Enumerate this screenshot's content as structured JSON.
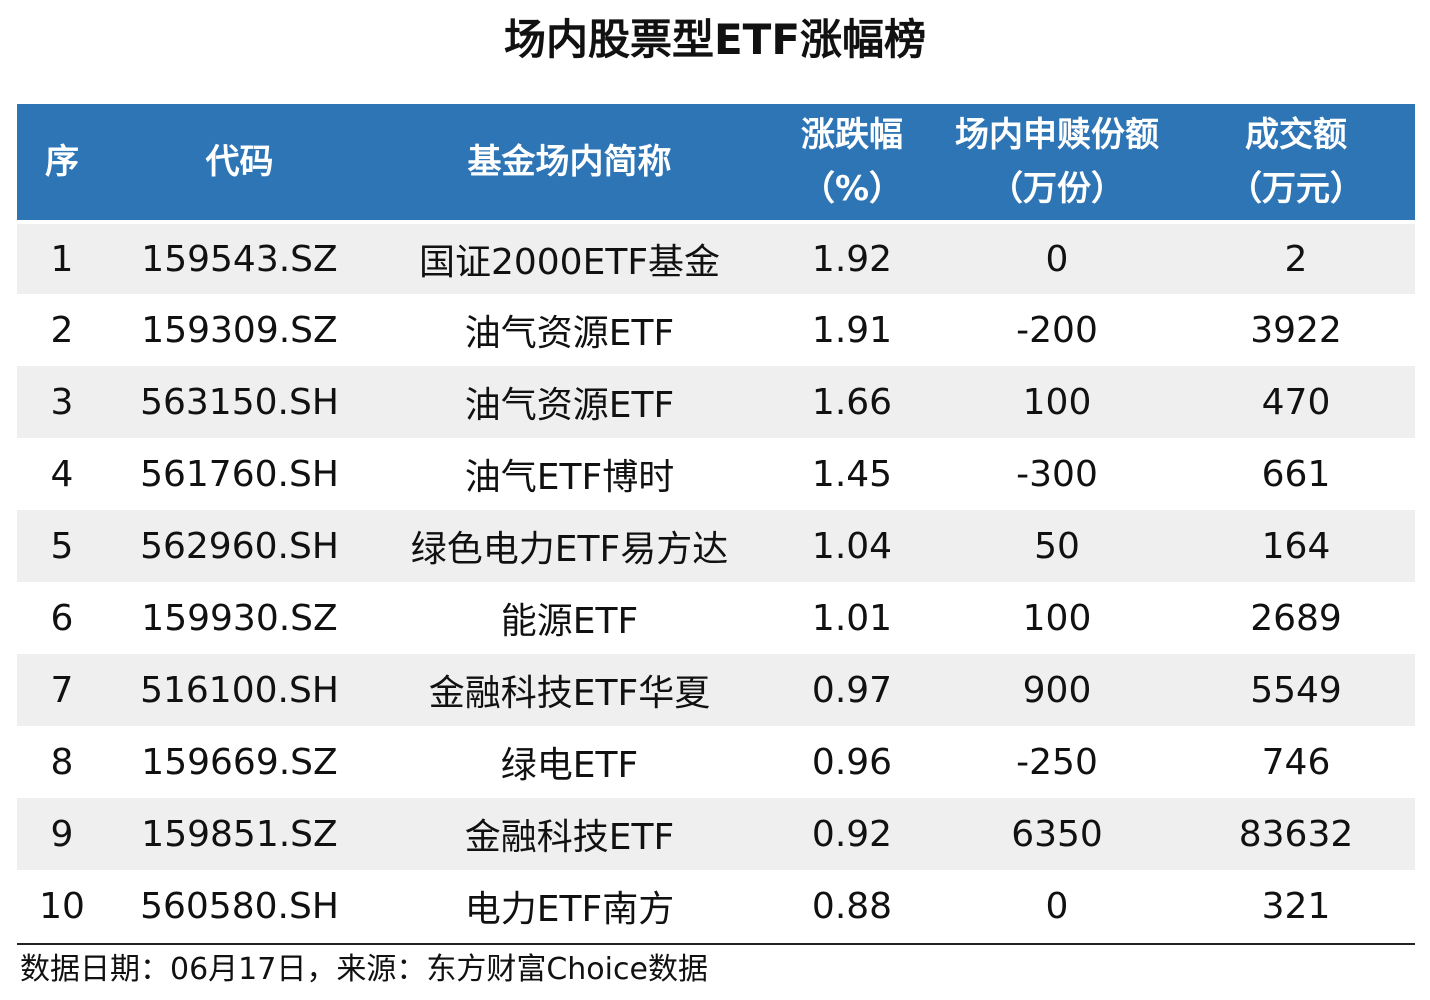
{
  "title": "场内股票型ETF涨幅榜",
  "headers": [
    {
      "line1": "序",
      "line2": ""
    },
    {
      "line1": "代码",
      "line2": ""
    },
    {
      "line1": "基金场内简称",
      "line2": ""
    },
    {
      "line1": "涨跌幅",
      "line2": "（%）"
    },
    {
      "line1": "场内申赎份额",
      "line2": "（万份）"
    },
    {
      "line1": "成交额",
      "line2": "（万元）"
    }
  ],
  "rows": [
    {
      "rank": "1",
      "code": "159543.SZ",
      "name": "国证2000ETF基金",
      "change": "1.92",
      "shares": "0",
      "turnover": "2"
    },
    {
      "rank": "2",
      "code": "159309.SZ",
      "name": "油气资源ETF",
      "change": "1.91",
      "shares": "-200",
      "turnover": "3922"
    },
    {
      "rank": "3",
      "code": "563150.SH",
      "name": "油气资源ETF",
      "change": "1.66",
      "shares": "100",
      "turnover": "470"
    },
    {
      "rank": "4",
      "code": "561760.SH",
      "name": "油气ETF博时",
      "change": "1.45",
      "shares": "-300",
      "turnover": "661"
    },
    {
      "rank": "5",
      "code": "562960.SH",
      "name": "绿色电力ETF易方达",
      "change": "1.04",
      "shares": "50",
      "turnover": "164"
    },
    {
      "rank": "6",
      "code": "159930.SZ",
      "name": "能源ETF",
      "change": "1.01",
      "shares": "100",
      "turnover": "2689"
    },
    {
      "rank": "7",
      "code": "516100.SH",
      "name": "金融科技ETF华夏",
      "change": "0.97",
      "shares": "900",
      "turnover": "5549"
    },
    {
      "rank": "8",
      "code": "159669.SZ",
      "name": "绿电ETF",
      "change": "0.96",
      "shares": "-250",
      "turnover": "746"
    },
    {
      "rank": "9",
      "code": "159851.SZ",
      "name": "金融科技ETF",
      "change": "0.92",
      "shares": "6350",
      "turnover": "83632"
    },
    {
      "rank": "10",
      "code": "560580.SH",
      "name": "电力ETF南方",
      "change": "0.88",
      "shares": "0",
      "turnover": "321"
    }
  ],
  "footnote": "数据日期：06月17日，来源：东方财富Choice数据",
  "colors": {
    "header_bg": "#2e75b6",
    "stripe_bg": "#efefef"
  }
}
